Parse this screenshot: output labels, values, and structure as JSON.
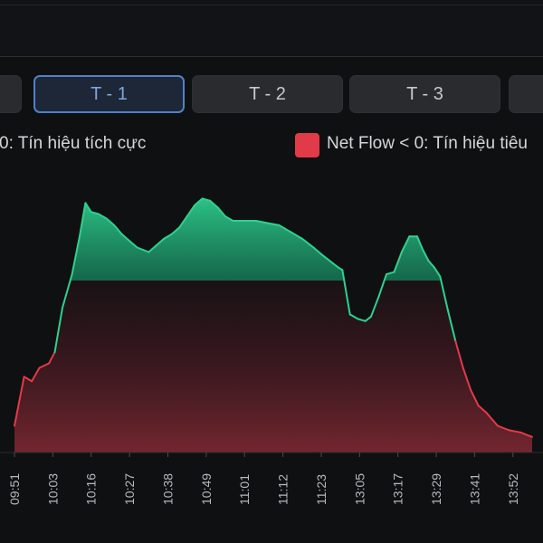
{
  "tabs": [
    {
      "label": "",
      "active": false
    },
    {
      "label": "T - 1",
      "active": true
    },
    {
      "label": "T - 2",
      "active": false
    },
    {
      "label": "T - 3",
      "active": false
    },
    {
      "label": "",
      "active": false
    }
  ],
  "legend": {
    "positive_label": "0: Tín hiệu tích cực",
    "negative_label": "Net Flow < 0: Tín hiệu tiêu",
    "positive_color": "#2fd18f",
    "negative_color": "#e13a49"
  },
  "colors": {
    "background": "#0f1012",
    "tab_active_border": "#4f82c8",
    "tick_text": "#b8b9bd"
  },
  "chart_data": {
    "type": "area",
    "xlabel": "",
    "ylabel": "",
    "baseline": 0,
    "ylim": [
      -5,
      8
    ],
    "x_ticks": [
      "09:51",
      "10:03",
      "10:16",
      "10:27",
      "10:38",
      "10:49",
      "11:01",
      "11:12",
      "11:23",
      "13:05",
      "13:17",
      "13:29",
      "13:41",
      "13:52"
    ],
    "series": [
      {
        "values": [
          [
            0,
            -3.8
          ],
          [
            0.25,
            -1.6
          ],
          [
            0.45,
            -1.8
          ],
          [
            0.65,
            -1.2
          ],
          [
            0.9,
            -1.0
          ],
          [
            1.05,
            -0.5
          ],
          [
            1.25,
            1.5
          ],
          [
            1.5,
            3.0
          ],
          [
            1.7,
            4.7
          ],
          [
            1.85,
            6.2
          ],
          [
            2.0,
            5.8
          ],
          [
            2.2,
            5.7
          ],
          [
            2.4,
            5.5
          ],
          [
            2.6,
            5.2
          ],
          [
            2.8,
            4.8
          ],
          [
            3.0,
            4.5
          ],
          [
            3.2,
            4.2
          ],
          [
            3.35,
            4.1
          ],
          [
            3.5,
            4.0
          ],
          [
            3.7,
            4.3
          ],
          [
            3.9,
            4.6
          ],
          [
            4.1,
            4.8
          ],
          [
            4.3,
            5.1
          ],
          [
            4.5,
            5.6
          ],
          [
            4.7,
            6.1
          ],
          [
            4.9,
            6.4
          ],
          [
            5.1,
            6.3
          ],
          [
            5.3,
            6.0
          ],
          [
            5.5,
            5.6
          ],
          [
            5.7,
            5.4
          ],
          [
            6.0,
            5.4
          ],
          [
            6.3,
            5.4
          ],
          [
            6.6,
            5.3
          ],
          [
            6.9,
            5.2
          ],
          [
            7.2,
            4.9
          ],
          [
            7.5,
            4.6
          ],
          [
            7.8,
            4.2
          ],
          [
            8.0,
            3.9
          ],
          [
            8.15,
            3.7
          ],
          [
            8.3,
            3.5
          ],
          [
            8.45,
            3.3
          ],
          [
            8.55,
            3.2
          ],
          [
            8.75,
            1.2
          ],
          [
            8.95,
            1.0
          ],
          [
            9.15,
            0.9
          ],
          [
            9.3,
            1.1
          ],
          [
            9.5,
            2.0
          ],
          [
            9.7,
            3.0
          ],
          [
            9.9,
            3.1
          ],
          [
            10.1,
            4.0
          ],
          [
            10.3,
            4.7
          ],
          [
            10.5,
            4.7
          ],
          [
            10.65,
            4.1
          ],
          [
            10.8,
            3.6
          ],
          [
            10.95,
            3.3
          ],
          [
            11.1,
            2.9
          ],
          [
            11.3,
            1.4
          ],
          [
            11.5,
            0.0
          ],
          [
            11.7,
            -1.2
          ],
          [
            11.9,
            -2.2
          ],
          [
            12.1,
            -2.9
          ],
          [
            12.3,
            -3.2
          ],
          [
            12.6,
            -3.8
          ],
          [
            12.9,
            -4.0
          ],
          [
            13.2,
            -4.1
          ],
          [
            13.5,
            -4.3
          ]
        ]
      }
    ]
  }
}
